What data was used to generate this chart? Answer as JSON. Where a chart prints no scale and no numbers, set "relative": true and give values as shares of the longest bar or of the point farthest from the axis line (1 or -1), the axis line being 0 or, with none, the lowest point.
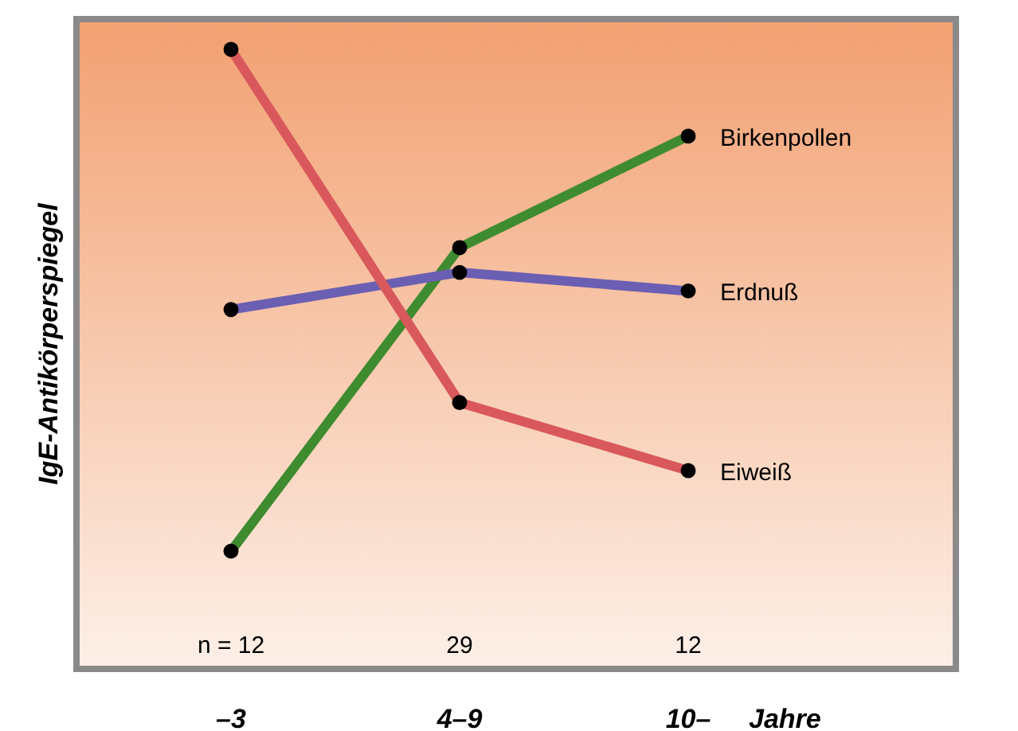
{
  "chart_data": {
    "type": "line",
    "relative": true,
    "ylabel": "IgE-Antikörperspiegel",
    "xlabel": "Jahre",
    "categories": [
      "–3",
      "4–9",
      "10–"
    ],
    "series": [
      {
        "name": "Birkenpollen",
        "color": "#3f8b2f",
        "values": [
          0.19,
          0.68,
          0.86
        ]
      },
      {
        "name": "Erdnuß",
        "color": "#6b5fb3",
        "values": [
          0.58,
          0.64,
          0.61
        ]
      },
      {
        "name": "Eiweiß",
        "color": "#d9585b",
        "values": [
          1,
          0.43,
          0.32
        ]
      }
    ],
    "annotations": [
      "n = 12",
      "29",
      "12"
    ],
    "marker": "circle",
    "line_style": "solid"
  }
}
